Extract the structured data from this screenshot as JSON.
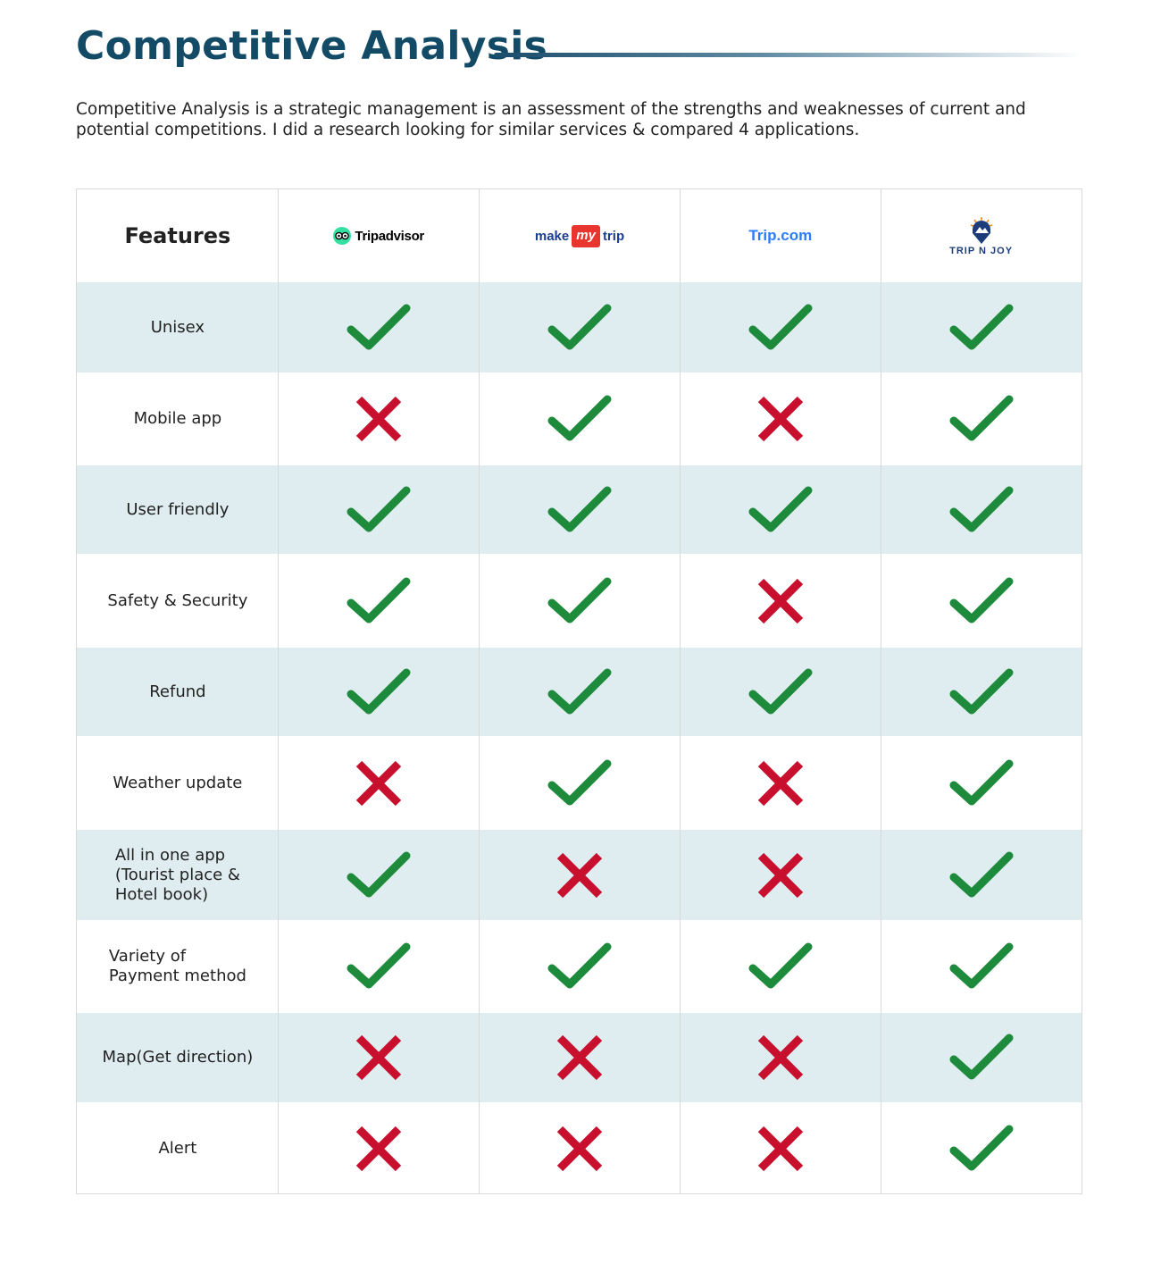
{
  "title": "Competitive Analysis",
  "intro": "Competitive Analysis is a strategic management is an assessment of the strengths and weaknesses of current and potential competitions. I did a research looking for similar services & compared 4 applications.",
  "table": {
    "header": "Features",
    "apps": [
      {
        "name": "Tripadvisor",
        "logo": "tripadvisor-logo"
      },
      {
        "name_parts": [
          "make",
          "my",
          "trip"
        ],
        "logo": "makemytrip-logo"
      },
      {
        "name": "Trip.com",
        "logo": "tripcom-logo"
      },
      {
        "name": "TRIP N JOY",
        "logo": "tripnjoy-logo"
      }
    ],
    "rows": [
      {
        "feature": "Unisex",
        "values": [
          true,
          true,
          true,
          true
        ]
      },
      {
        "feature": "Mobile app",
        "values": [
          false,
          true,
          false,
          true
        ]
      },
      {
        "feature": "User friendly",
        "values": [
          true,
          true,
          true,
          true
        ]
      },
      {
        "feature": "Safety & Security",
        "values": [
          true,
          true,
          false,
          true
        ]
      },
      {
        "feature": "Refund",
        "values": [
          true,
          true,
          true,
          true
        ]
      },
      {
        "feature": "Weather update",
        "values": [
          false,
          true,
          false,
          true
        ]
      },
      {
        "feature": "All in one app\n(Tourist place &\nHotel book)",
        "values": [
          true,
          false,
          false,
          true
        ]
      },
      {
        "feature": "Variety of\nPayment method",
        "values": [
          true,
          true,
          true,
          true
        ]
      },
      {
        "feature": "Map(Get direction)",
        "values": [
          false,
          false,
          false,
          true
        ]
      },
      {
        "feature": "Alert",
        "values": [
          false,
          false,
          false,
          true
        ]
      }
    ]
  },
  "colors": {
    "check": "#1e8a3b",
    "cross": "#c8102e",
    "shade": "#e0edf0",
    "title": "#134a66"
  },
  "icons": {
    "yes": "check-icon",
    "no": "cross-icon"
  }
}
